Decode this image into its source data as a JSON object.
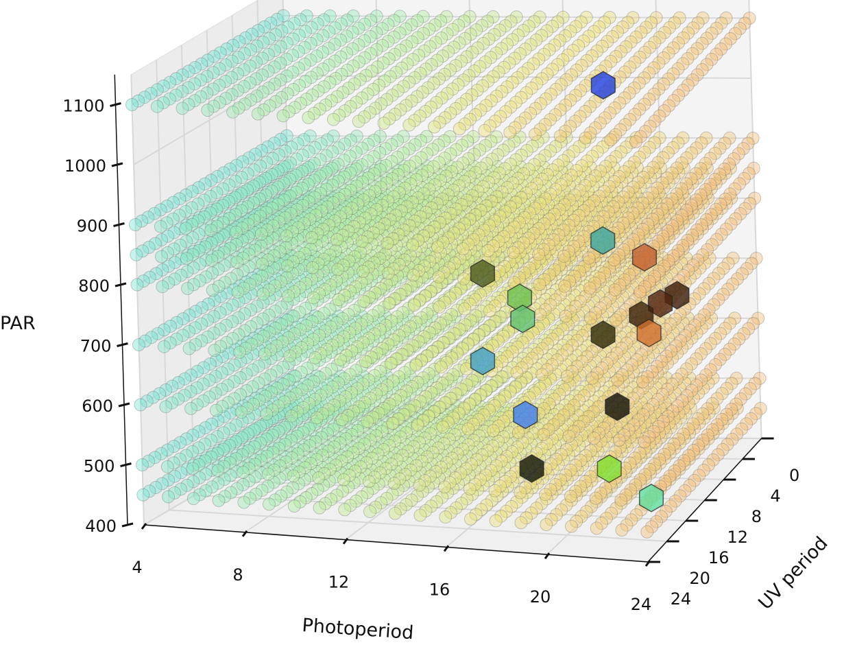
{
  "chart_data": {
    "type": "scatter",
    "projection": "3d",
    "title": "",
    "xlabel": "Photoperiod",
    "ylabel": "UV period",
    "zlabel": "PAR",
    "xlim": [
      4,
      24
    ],
    "ylim": [
      0,
      24
    ],
    "zlim": [
      400,
      1150
    ],
    "x_ticks": [
      "4",
      "8",
      "12",
      "16",
      "20",
      "24"
    ],
    "y_ticks": [
      "0",
      "4",
      "8",
      "12",
      "16",
      "20",
      "24"
    ],
    "z_ticks": [
      "400",
      "500",
      "600",
      "700",
      "800",
      "900",
      "1000",
      "1100"
    ],
    "grid": true,
    "grid_points": {
      "photoperiod_values": [
        4,
        5,
        6,
        7,
        8,
        9,
        10,
        11,
        12,
        13,
        14,
        15,
        16,
        17,
        18,
        19,
        20,
        21,
        22,
        23,
        24
      ],
      "uv_values": [
        0,
        1,
        2,
        3,
        4,
        5,
        6,
        7,
        8,
        9,
        10,
        11,
        12,
        13,
        14,
        15,
        16,
        17,
        18,
        19,
        20,
        21,
        22,
        23,
        24
      ],
      "par_levels": [
        450,
        500,
        600,
        700,
        800,
        850,
        900,
        1100
      ],
      "marker": "circle",
      "color_ramp": [
        "#7fe6d4",
        "#b5ec9c",
        "#ece27a",
        "#f3c27c"
      ]
    },
    "highlighted": [
      {
        "photoperiod": 20.3,
        "uv": 12,
        "par": 1085,
        "color": "#2040e0"
      },
      {
        "photoperiod": 20.1,
        "uv": 12,
        "par": 826,
        "color": "#3aa8a0"
      },
      {
        "photoperiod": 15.1,
        "uv": 12,
        "par": 763,
        "color": "#4a5a20"
      },
      {
        "photoperiod": 16.6,
        "uv": 12,
        "par": 725,
        "color": "#6cc050"
      },
      {
        "photoperiod": 16.7,
        "uv": 12,
        "par": 690,
        "color": "#60c070"
      },
      {
        "photoperiod": 21.8,
        "uv": 12,
        "par": 801,
        "color": "#c06030"
      },
      {
        "photoperiod": 23.1,
        "uv": 12,
        "par": 740,
        "color": "#3a1a08"
      },
      {
        "photoperiod": 22.4,
        "uv": 12,
        "par": 725,
        "color": "#502410"
      },
      {
        "photoperiod": 21.6,
        "uv": 12,
        "par": 704,
        "color": "#3a2008"
      },
      {
        "photoperiod": 20.0,
        "uv": 12,
        "par": 669,
        "color": "#302a08"
      },
      {
        "photoperiod": 21.9,
        "uv": 12,
        "par": 675,
        "color": "#d07030"
      },
      {
        "photoperiod": 15.0,
        "uv": 12,
        "par": 617,
        "color": "#40a0c8"
      },
      {
        "photoperiod": 16.7,
        "uv": 12,
        "par": 530,
        "color": "#4080f0"
      },
      {
        "photoperiod": 20.5,
        "uv": 12,
        "par": 550,
        "color": "#101008"
      },
      {
        "photoperiod": 16.9,
        "uv": 12,
        "par": 441,
        "color": "#101408"
      },
      {
        "photoperiod": 20.1,
        "uv": 12,
        "par": 446,
        "color": "#80e030"
      },
      {
        "photoperiod": 21.8,
        "uv": 12,
        "par": 400,
        "color": "#60e0a0"
      }
    ]
  }
}
